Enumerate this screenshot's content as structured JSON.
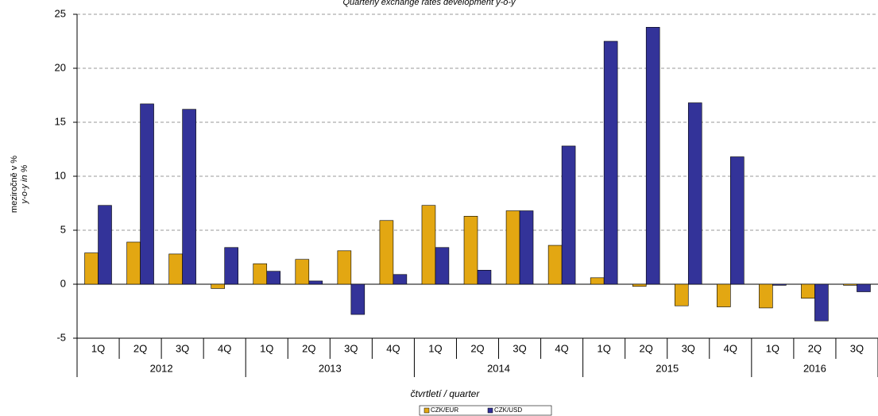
{
  "chart_data": {
    "type": "bar",
    "title": "Quarterly exchange rates development y-o-y",
    "ylabel": [
      "meziročně v %",
      "y-o-y in %"
    ],
    "xlabel": "čtvrtletí / quarter",
    "groups": [
      {
        "name": "2012",
        "categories": [
          "1Q",
          "2Q",
          "3Q",
          "4Q"
        ]
      },
      {
        "name": "2013",
        "categories": [
          "1Q",
          "2Q",
          "3Q",
          "4Q"
        ]
      },
      {
        "name": "2014",
        "categories": [
          "1Q",
          "2Q",
          "3Q",
          "4Q"
        ]
      },
      {
        "name": "2015",
        "categories": [
          "1Q",
          "2Q",
          "3Q",
          "4Q"
        ]
      },
      {
        "name": "2016",
        "categories": [
          "1Q",
          "2Q",
          "3Q"
        ]
      }
    ],
    "series": [
      {
        "name": "CZK/EUR",
        "color": "#e3a712",
        "values": [
          2.9,
          3.9,
          2.8,
          -0.4,
          1.9,
          2.3,
          3.1,
          5.9,
          7.3,
          6.3,
          6.8,
          3.6,
          0.6,
          -0.2,
          -2.0,
          -2.1,
          -2.2,
          -1.3,
          -0.1
        ]
      },
      {
        "name": "CZK/USD",
        "color": "#333399",
        "values": [
          7.3,
          16.7,
          16.2,
          3.4,
          1.2,
          0.3,
          -2.8,
          0.9,
          3.4,
          1.3,
          6.8,
          12.8,
          22.5,
          23.8,
          16.8,
          11.8,
          -0.1,
          -3.4,
          -0.7
        ]
      }
    ],
    "ylim": [
      -5,
      25
    ],
    "yticks": [
      -5,
      0,
      5,
      10,
      15,
      20,
      25
    ],
    "grid": true
  }
}
